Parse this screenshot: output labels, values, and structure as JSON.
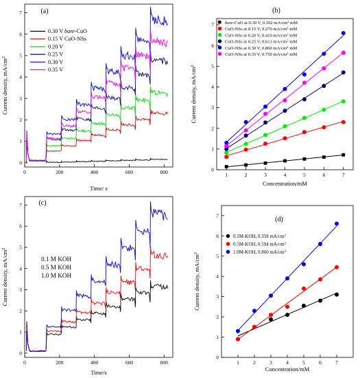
{
  "chart_data": [
    {
      "panel": "(a)",
      "type": "line",
      "xlabel": "Time/ s",
      "ylabel": "Current density, mA/cm²",
      "xlim": [
        0,
        850
      ],
      "ylim": [
        -0.2,
        7.4
      ],
      "xticks": [
        0,
        200,
        400,
        600,
        800
      ],
      "yticks": [
        0,
        1,
        2,
        3,
        4,
        5,
        6,
        7
      ],
      "grid": false,
      "legend": "top-left",
      "series": [
        {
          "name": "0.30 V bare-CuO",
          "color": "#000000",
          "steps": [
            0.02,
            0.03,
            0.05,
            0.07,
            0.09,
            0.11,
            0.13,
            0.16
          ]
        },
        {
          "name": "0.15 V CuO-NSs",
          "color": "#dd0000",
          "steps": [
            0.55,
            0.8,
            1.05,
            1.3,
            1.55,
            1.8,
            2.05,
            2.35
          ]
        },
        {
          "name": "0.20 V",
          "color": "#00dd00",
          "steps": [
            0.8,
            1.15,
            1.5,
            1.85,
            2.25,
            2.6,
            2.95,
            3.3
          ]
        },
        {
          "name": "0.25 V",
          "color": "#000080",
          "steps": [
            1.1,
            1.55,
            2.05,
            2.55,
            3.05,
            3.55,
            4.2,
            4.85
          ]
        },
        {
          "name": "0.30 V",
          "color": "#0000ff",
          "steps": [
            1.35,
            2.05,
            2.75,
            3.5,
            4.3,
            5.05,
            5.85,
            6.75
          ]
        },
        {
          "name": "0.35 V",
          "color": "#ee00ee",
          "steps": [
            1.15,
            1.75,
            2.4,
            3.1,
            3.75,
            4.45,
            5.05,
            5.75
          ]
        }
      ]
    },
    {
      "panel": "(b)",
      "type": "scatter",
      "xlabel": "Concentration/mM",
      "ylabel": "Current density, mA/cm²",
      "xlim": [
        0.5,
        7.5
      ],
      "ylim": [
        0,
        7.3
      ],
      "xticks": [
        1,
        2,
        3,
        4,
        5,
        6,
        7
      ],
      "yticks": [
        0,
        1,
        2,
        3,
        4,
        5,
        6,
        7
      ],
      "grid": false,
      "legend": "top-left",
      "x": [
        1,
        2,
        3,
        4,
        5,
        6,
        7
      ],
      "series": [
        {
          "name": "bare-CuO at 0.30 V, 0.102 mA/cm² mM",
          "color": "#000000",
          "marker": "square",
          "values": [
            0.15,
            0.23,
            0.32,
            0.43,
            0.52,
            0.61,
            0.72
          ]
        },
        {
          "name": "CuO-NSs at 0.15 V, 0.270 mA/cm² mM",
          "color": "#ff0000",
          "marker": "circle",
          "values": [
            0.62,
            0.97,
            1.26,
            1.52,
            1.82,
            2.05,
            2.3
          ]
        },
        {
          "name": "CuO-NSs at 0.20 V, 0.410 mA/cm² mM",
          "color": "#00ee00",
          "marker": "circle",
          "values": [
            0.82,
            1.25,
            1.68,
            2.1,
            2.5,
            2.9,
            3.3
          ]
        },
        {
          "name": "CuO-NSs at 0.25 V, 0.613 mA/cm² mM",
          "color": "#000080",
          "marker": "circle",
          "values": [
            1.0,
            1.65,
            2.28,
            2.85,
            3.4,
            4.05,
            4.7
          ]
        },
        {
          "name": "CuO-NSs at 0.30 V, 0.860 mA/cm² mM",
          "color": "#0000ff",
          "marker": "circle",
          "values": [
            1.3,
            2.3,
            3.05,
            3.9,
            4.6,
            5.6,
            6.6
          ]
        },
        {
          "name": "CuO-NSs at 0.35 V, 0.750 mA/cm² mM",
          "color": "#ff00ff",
          "marker": "circle",
          "values": [
            1.15,
            1.9,
            2.7,
            3.35,
            4.2,
            4.9,
            5.65
          ]
        }
      ]
    },
    {
      "panel": "(c)",
      "type": "line",
      "xlabel": "Time/s",
      "ylabel": "Current density, mA/cm²",
      "xlim": [
        0,
        850
      ],
      "ylim": [
        -0.2,
        7.4
      ],
      "xticks": [
        0,
        200,
        400,
        600,
        800
      ],
      "yticks": [
        0,
        1,
        2,
        3,
        4,
        5,
        6,
        7
      ],
      "grid": false,
      "legend": "left",
      "series": [
        {
          "name": "0.1 M KOH",
          "color": "#000000",
          "steps": [
            0.9,
            1.25,
            1.6,
            1.9,
            2.25,
            2.6,
            2.9,
            3.2
          ]
        },
        {
          "name": "0.5 M KOH",
          "color": "#ff0000",
          "steps": [
            1.05,
            1.5,
            1.95,
            2.4,
            2.9,
            3.4,
            4.0,
            4.7
          ]
        },
        {
          "name": "1.0 M KOH",
          "color": "#0000ff",
          "steps": [
            1.25,
            2.05,
            2.75,
            3.45,
            4.25,
            5.05,
            5.85,
            6.65
          ]
        }
      ]
    },
    {
      "panel": "(d)",
      "type": "scatter",
      "xlabel": "Concentration/mM",
      "ylabel": "Current density, mA/cm²",
      "xlim": [
        0,
        8
      ],
      "ylim": [
        0,
        7.5
      ],
      "xticks": [
        1,
        2,
        3,
        4,
        5,
        6,
        7
      ],
      "yticks": [
        0,
        1,
        2,
        3,
        4,
        5,
        6,
        7
      ],
      "grid": false,
      "legend": "top-left",
      "x": [
        1,
        2,
        3,
        4,
        5,
        6,
        7
      ],
      "series": [
        {
          "name": "0.1M-KOH, 0.358 mA/cm²",
          "color": "#000000",
          "marker": "circle",
          "values": [
            0.9,
            1.5,
            1.88,
            2.1,
            2.55,
            2.8,
            3.1
          ]
        },
        {
          "name": "0.5M-KOH, 0.594 mA/cm²",
          "color": "#ff0000",
          "marker": "circle",
          "values": [
            0.9,
            1.5,
            2.1,
            2.5,
            3.4,
            3.85,
            4.45
          ]
        },
        {
          "name": "1.0M-KOH, 0.860 mA/cm²",
          "color": "#0000ff",
          "marker": "circle",
          "values": [
            1.3,
            2.3,
            3.05,
            3.9,
            4.6,
            5.6,
            6.6
          ]
        }
      ]
    }
  ]
}
